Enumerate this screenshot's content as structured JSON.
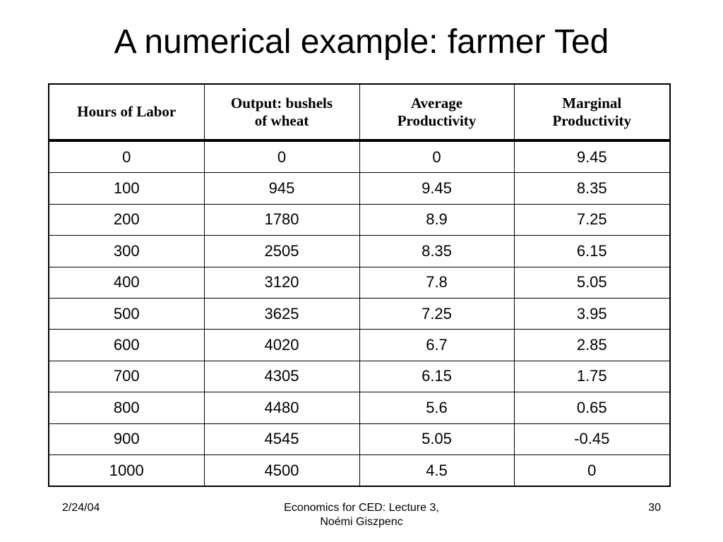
{
  "title": "A numerical example: farmer Ted",
  "table": {
    "header": [
      [
        "Hours of Labor"
      ],
      [
        "Output: bushels",
        "of wheat"
      ],
      [
        "Average",
        "Productivity"
      ],
      [
        "Marginal",
        "Productivity"
      ]
    ],
    "rows": [
      [
        "0",
        "0",
        "0",
        "9.45"
      ],
      [
        "100",
        "945",
        "9.45",
        "8.35"
      ],
      [
        "200",
        "1780",
        "8.9",
        "7.25"
      ],
      [
        "300",
        "2505",
        "8.35",
        "6.15"
      ],
      [
        "400",
        "3120",
        "7.8",
        "5.05"
      ],
      [
        "500",
        "3625",
        "7.25",
        "3.95"
      ],
      [
        "600",
        "4020",
        "6.7",
        "2.85"
      ],
      [
        "700",
        "4305",
        "6.15",
        "1.75"
      ],
      [
        "800",
        "4480",
        "5.6",
        "0.65"
      ],
      [
        "900",
        "4545",
        "5.05",
        "-0.45"
      ],
      [
        "1000",
        "4500",
        "4.5",
        "0"
      ]
    ]
  },
  "footer": {
    "date": "2/24/04",
    "center": [
      "Economics for CED: Lecture 3,",
      "Noémi Giszpenc"
    ],
    "page": "30"
  }
}
